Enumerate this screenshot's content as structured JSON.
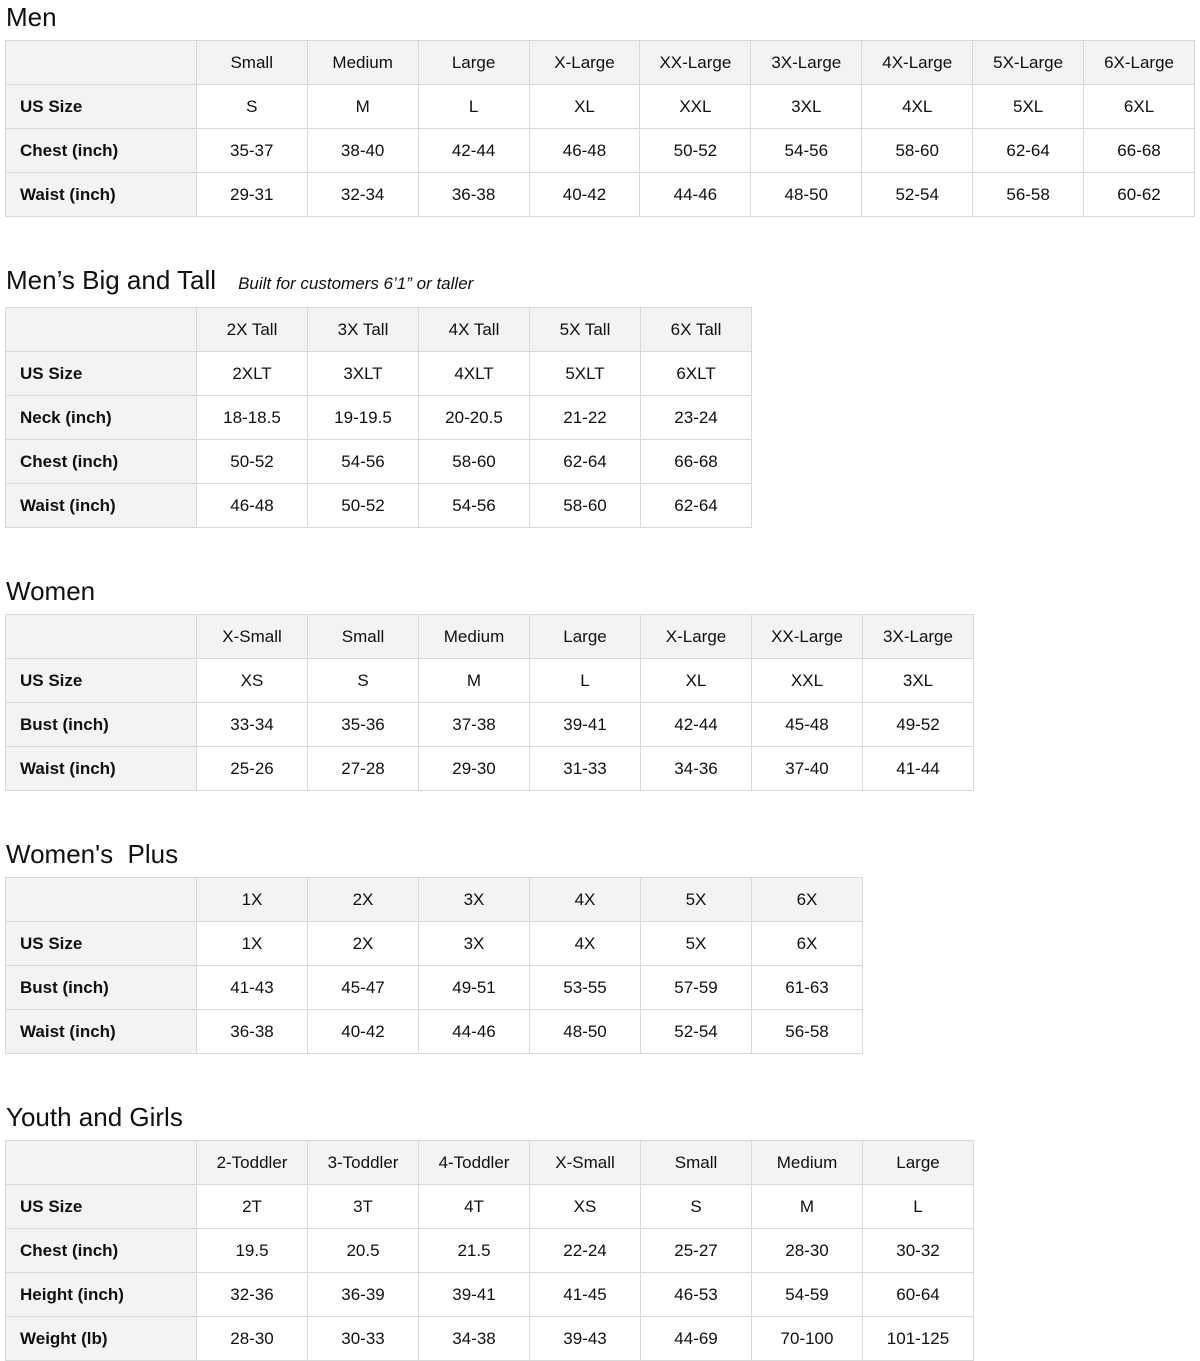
{
  "page": {
    "background_color": "#ffffff",
    "text_color": "#0f1111",
    "border_color": "#d9d9d9",
    "header_bg_color": "#f3f3f3"
  },
  "sections": [
    {
      "title": "Men",
      "subtitle": "",
      "columns": [
        "Small",
        "Medium",
        "Large",
        "X-Large",
        "XX-Large",
        "3X-Large",
        "4X-Large",
        "5X-Large",
        "6X-Large"
      ],
      "rows": [
        {
          "label": "US Size",
          "values": [
            "S",
            "M",
            "L",
            "XL",
            "XXL",
            "3XL",
            "4XL",
            "5XL",
            "6XL"
          ]
        },
        {
          "label": "Chest (inch)",
          "values": [
            "35-37",
            "38-40",
            "42-44",
            "46-48",
            "50-52",
            "54-56",
            "58-60",
            "62-64",
            "66-68"
          ]
        },
        {
          "label": "Waist (inch)",
          "values": [
            "29-31",
            "32-34",
            "36-38",
            "40-42",
            "44-46",
            "48-50",
            "52-54",
            "56-58",
            "60-62"
          ]
        }
      ]
    },
    {
      "title": "Men’s Big and Tall",
      "subtitle": "Built for customers 6’1” or taller",
      "columns": [
        "2X Tall",
        "3X Tall",
        "4X Tall",
        "5X Tall",
        "6X Tall"
      ],
      "rows": [
        {
          "label": "US Size",
          "values": [
            "2XLT",
            "3XLT",
            "4XLT",
            "5XLT",
            "6XLT"
          ]
        },
        {
          "label": "Neck (inch)",
          "values": [
            "18-18.5",
            "19-19.5",
            "20-20.5",
            "21-22",
            "23-24"
          ]
        },
        {
          "label": "Chest (inch)",
          "values": [
            "50-52",
            "54-56",
            "58-60",
            "62-64",
            "66-68"
          ]
        },
        {
          "label": "Waist (inch)",
          "values": [
            "46-48",
            "50-52",
            "54-56",
            "58-60",
            "62-64"
          ]
        }
      ]
    },
    {
      "title": "Women",
      "subtitle": "",
      "columns": [
        "X-Small",
        "Small",
        "Medium",
        "Large",
        "X-Large",
        "XX-Large",
        "3X-Large"
      ],
      "rows": [
        {
          "label": "US Size",
          "values": [
            "XS",
            "S",
            "M",
            "L",
            "XL",
            "XXL",
            "3XL"
          ]
        },
        {
          "label": "Bust (inch)",
          "values": [
            "33-34",
            "35-36",
            "37-38",
            "39-41",
            "42-44",
            "45-48",
            "49-52"
          ]
        },
        {
          "label": "Waist (inch)",
          "values": [
            "25-26",
            "27-28",
            "29-30",
            "31-33",
            "34-36",
            "37-40",
            "41-44"
          ]
        }
      ]
    },
    {
      "title": "Women's  Plus",
      "subtitle": "",
      "columns": [
        "1X",
        "2X",
        "3X",
        "4X",
        "5X",
        "6X"
      ],
      "rows": [
        {
          "label": "US Size",
          "values": [
            "1X",
            "2X",
            "3X",
            "4X",
            "5X",
            "6X"
          ]
        },
        {
          "label": "Bust (inch)",
          "values": [
            "41-43",
            "45-47",
            "49-51",
            "53-55",
            "57-59",
            "61-63"
          ]
        },
        {
          "label": "Waist (inch)",
          "values": [
            "36-38",
            "40-42",
            "44-46",
            "48-50",
            "52-54",
            "56-58"
          ]
        }
      ]
    },
    {
      "title": "Youth and Girls",
      "subtitle": "",
      "columns": [
        "2-Toddler",
        "3-Toddler",
        "4-Toddler",
        "X-Small",
        "Small",
        "Medium",
        "Large"
      ],
      "rows": [
        {
          "label": "US Size",
          "values": [
            "2T",
            "3T",
            "4T",
            "XS",
            "S",
            "M",
            "L"
          ]
        },
        {
          "label": "Chest (inch)",
          "values": [
            "19.5",
            "20.5",
            "21.5",
            "22-24",
            "25-27",
            "28-30",
            "30-32"
          ]
        },
        {
          "label": "Height (inch)",
          "values": [
            "32-36",
            "36-39",
            "39-41",
            "41-45",
            "46-53",
            "54-59",
            "60-64"
          ]
        },
        {
          "label": "Weight (lb)",
          "values": [
            "28-30",
            "30-33",
            "34-38",
            "39-43",
            "44-69",
            "70-100",
            "101-125"
          ]
        }
      ]
    }
  ]
}
